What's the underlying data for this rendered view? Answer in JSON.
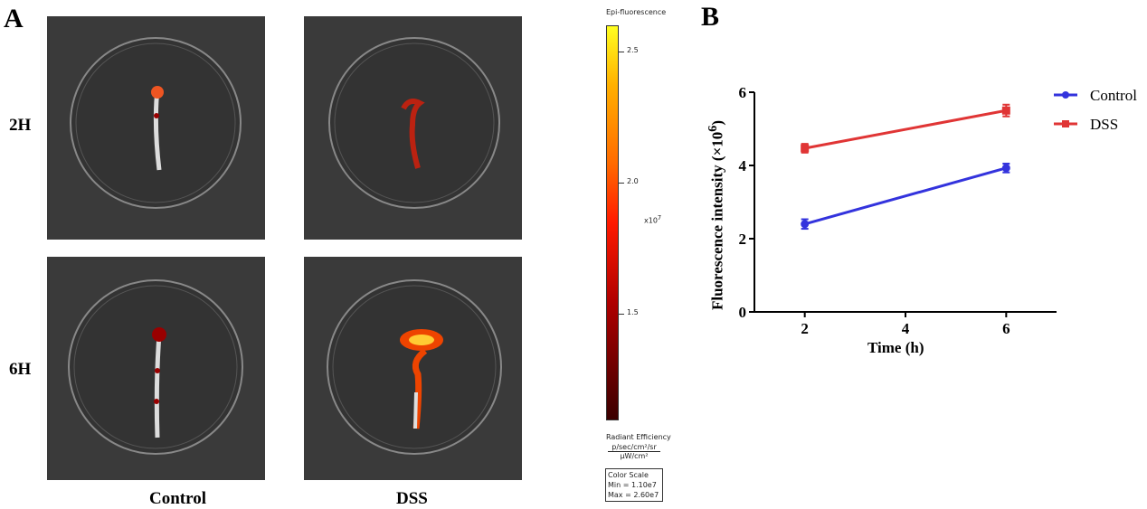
{
  "panel_a": {
    "letter": "A",
    "rows": [
      "2H",
      "6H"
    ],
    "columns": [
      "Control",
      "DSS"
    ]
  },
  "colorbar": {
    "title": "Epi-fluorescence",
    "ticks": [
      "2.5",
      "2.0",
      "1.5"
    ],
    "tick_values": [
      2.5,
      2.0,
      1.5
    ],
    "range": [
      1.1,
      2.6
    ],
    "multiplier": "x10",
    "multiplier_exp": "7",
    "unit_label": "Radiant Efficiency",
    "unit_num": "p/sec/cm²/sr",
    "unit_den": "µW/cm²",
    "box_title": "Color Scale",
    "box_min": "Min = 1.10e7",
    "box_max": "Max = 2.60e7"
  },
  "panel_b": {
    "letter": "B"
  },
  "chart_data": {
    "type": "line",
    "xlabel": "Time (h)",
    "ylabel": "Fluorescence intensity (×10",
    "ylabel_exp": "6",
    "ylabel_end": ")",
    "xlim": [
      1,
      7
    ],
    "ylim": [
      0,
      6
    ],
    "xticks": [
      2,
      4,
      6
    ],
    "yticks": [
      0,
      2,
      4,
      6
    ],
    "grid": false,
    "legend": "top-right",
    "x": [
      2,
      6
    ],
    "series": [
      {
        "name": "Control",
        "values": [
          2.4,
          3.93
        ],
        "errors": [
          0.13,
          0.12
        ],
        "color": "#3333dd",
        "marker": "circle"
      },
      {
        "name": "DSS",
        "values": [
          4.47,
          5.5
        ],
        "errors": [
          0.12,
          0.16
        ],
        "color": "#e03535",
        "marker": "square"
      }
    ]
  }
}
